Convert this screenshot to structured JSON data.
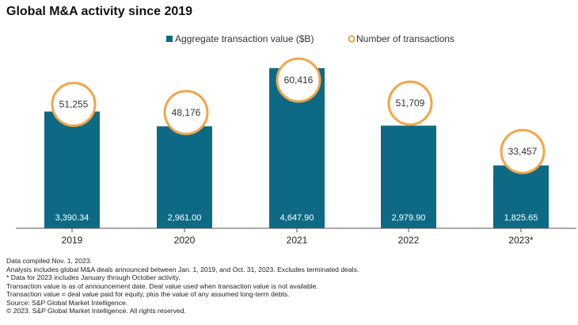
{
  "title": "Global M&A activity since 2019",
  "colors": {
    "bar": "#0e6a84",
    "circle": "#f0a64a",
    "axis": "#555555"
  },
  "chart_data": {
    "type": "bar",
    "title": "Global M&A activity since 2019",
    "categories": [
      "2019",
      "2020",
      "2021",
      "2022",
      "2023*"
    ],
    "series": [
      {
        "name": "Aggregate transaction value ($B)",
        "values": [
          3390.34,
          2961.0,
          4647.9,
          2979.9,
          1825.65
        ],
        "labels": [
          "3,390.34",
          "2,961.00",
          "4,647.90",
          "2,979.90",
          "1,825.65"
        ]
      },
      {
        "name": "Number of transactions",
        "values": [
          51255,
          48176,
          60416,
          51709,
          33457
        ],
        "labels": [
          "51,255",
          "48,176",
          "60,416",
          "51,709",
          "33,457"
        ]
      }
    ],
    "legend_position": "top-right",
    "grid": false
  },
  "footnotes": [
    "Data compiled Nov. 1, 2023.",
    "Analysis includes global M&A deals announced between Jan. 1, 2019, and Oct. 31, 2023. Excludes terminated deals.",
    "* Data for 2023 includes January through October activity.",
    "Transaction value is as of announcement date. Deal value used when transaction value is not available.",
    "Transaction value = deal value paid for equity, plus the value of any assumed long-term debts.",
    "Source: S&P Global Market Intelligence.",
    "© 2023. S&P Global Market Intelligence. All rights reserved."
  ]
}
